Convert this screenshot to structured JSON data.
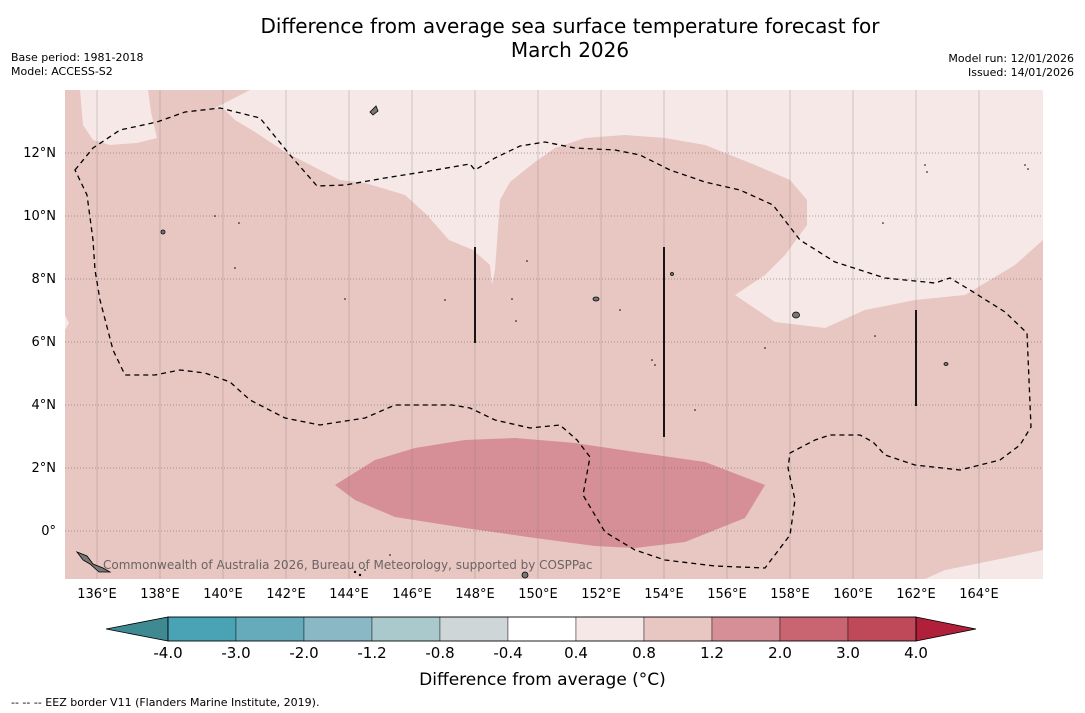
{
  "title_line1": "Difference from average sea surface temperature forecast for",
  "title_line2": "March 2026",
  "base_period": "Base period: 1981-2018",
  "model": "Model: ACCESS-S2",
  "model_run": "Model run: 12/01/2026",
  "issued": "Issued: 14/01/2026",
  "lat_labels": [
    "12°N",
    "10°N",
    "8°N",
    "6°N",
    "4°N",
    "2°N",
    "0°"
  ],
  "lon_labels": [
    "136°E",
    "138°E",
    "140°E",
    "142°E",
    "144°E",
    "146°E",
    "148°E",
    "150°E",
    "152°E",
    "154°E",
    "156°E",
    "158°E",
    "160°E",
    "162°E",
    "164°E"
  ],
  "attribution": "Commonwealth of Australia 2026, Bureau of Meteorology, supported by COSPPac",
  "colorbar": {
    "ticks": [
      "-4.0",
      "-3.0",
      "-2.0",
      "-1.2",
      "-0.8",
      "-0.4",
      "0.4",
      "0.8",
      "1.2",
      "2.0",
      "3.0",
      "4.0"
    ],
    "colors": [
      "#4aa3b4",
      "#66abbb",
      "#8ab8c4",
      "#aac9cd",
      "#cfd6d8",
      "#ffffff",
      "#f5e8e6",
      "#e8c6c2",
      "#d68e97",
      "#c96570",
      "#bf4859"
    ],
    "under_color": "#3f8a92",
    "over_color": "#b0203a",
    "label": "Difference from average (°C)"
  },
  "legend_eez": "--  --  -- EEZ border V11 (Flanders Marine Institute, 2019).",
  "map_colors": {
    "band_08_12": "#e8c6c2",
    "band_04_08": "#f5e8e6",
    "band_12_20": "#d68e97"
  }
}
